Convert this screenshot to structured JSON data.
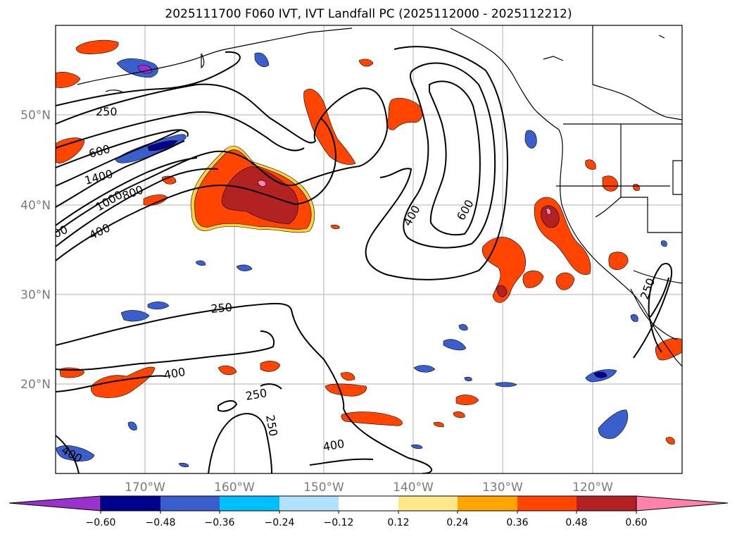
{
  "title": "2025111700 F060 IVT, IVT Landfall PC (2025112000 - 2025112212)",
  "latitude_labels": [
    "50°N",
    "40°N",
    "30°N",
    "20°N"
  ],
  "longitude_labels": [
    "170°W",
    "160°W",
    "150°W",
    "140°W",
    "130°W",
    "120°W"
  ],
  "contour_labels": [
    "250",
    "600",
    "1400",
    "1000",
    "800",
    "400",
    "400",
    "600",
    "250",
    "400",
    "250",
    "250",
    "400",
    "400",
    "250",
    "00"
  ],
  "colorbar": {
    "ticks": [
      "−0.60",
      "−0.48",
      "−0.36",
      "−0.24",
      "−0.12",
      "0.12",
      "0.24",
      "0.36",
      "0.48",
      "0.60"
    ],
    "colors": [
      "#9932cc",
      "#00008b",
      "#3a5fcd",
      "#00bfff",
      "#b0e2ff",
      "#ffffff",
      "#ffe88a",
      "#ffa500",
      "#ff4500",
      "#b22222",
      "#ff82ab"
    ]
  }
}
